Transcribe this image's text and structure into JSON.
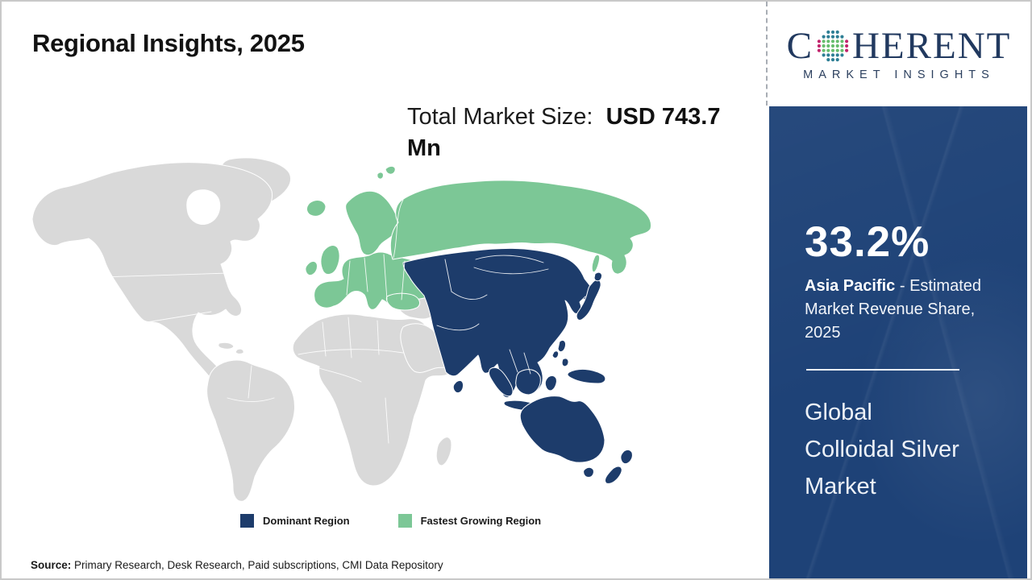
{
  "header": {
    "title": "Regional Insights, 2025"
  },
  "logo": {
    "word_start": "C",
    "word_end": "HERENT",
    "subtitle": "MARKET INSIGHTS",
    "text_color": "#21395f",
    "globe_dot_colors": {
      "teal": "#2e7f95",
      "green": "#67bd6e",
      "magenta": "#c2256d"
    }
  },
  "market_size": {
    "label": "Total Market Size:",
    "value": "USD 743.7 Mn"
  },
  "chart_data": {
    "type": "choropleth",
    "title": "Regional Insights, 2025",
    "total_market_size": "USD 743.7 Mn",
    "regions": [
      {
        "name": "Asia Pacific",
        "category": "Dominant Region",
        "share_pct": 33.2,
        "color": "#1d3c6b"
      },
      {
        "name": "Europe (incl. Russia)",
        "category": "Fastest Growing Region",
        "color": "#7cc796"
      },
      {
        "name": "Rest of World",
        "category": "Not highlighted",
        "color": "#d9d9d9"
      }
    ],
    "legend_position": "bottom",
    "annotation": "33.2% Asia Pacific - Estimated Market Revenue Share, 2025"
  },
  "legend": {
    "items": [
      {
        "label": "Dominant Region",
        "color": "#1d3c6b"
      },
      {
        "label": "Fastest Growing Region",
        "color": "#7cc796"
      }
    ]
  },
  "sidebar": {
    "background": "#1e4277",
    "share_value": "33.2%",
    "share_region": "Asia Pacific",
    "share_text": " - Estimated Market Revenue Share, 2025",
    "market_name": "Global\nColloidal Silver\nMarket"
  },
  "source": {
    "label": "Source:",
    "text": " Primary Research, Desk Research, Paid subscriptions, CMI Data Repository"
  }
}
